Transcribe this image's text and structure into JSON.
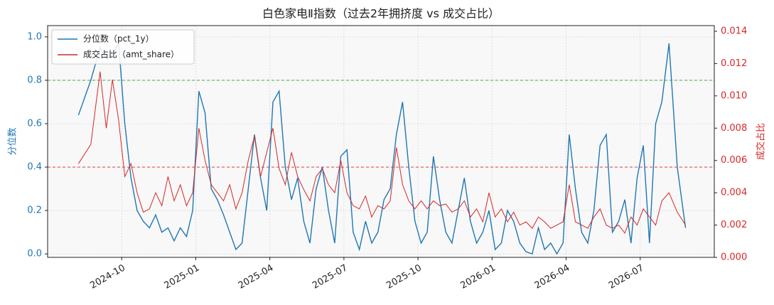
{
  "chart_data": {
    "type": "line",
    "title": "白色家电Ⅱ指数（过去2年拥挤度 vs 成交占比）",
    "ylabel": "分位数",
    "y2label": "成交占比",
    "x": [
      "2024-08",
      "2024-08",
      "2024-09",
      "2024-09",
      "2024-09",
      "2024-09",
      "2024-10",
      "2024-10",
      "2024-10",
      "2024-10",
      "2024-11",
      "2024-11",
      "2024-11",
      "2024-11",
      "2024-12",
      "2024-12",
      "2024-12",
      "2024-12",
      "2025-01",
      "2025-01",
      "2025-01",
      "2025-01",
      "2025-02",
      "2025-02",
      "2025-02",
      "2025-02",
      "2025-03",
      "2025-03",
      "2025-03",
      "2025-03",
      "2025-04",
      "2025-04",
      "2025-04",
      "2025-04",
      "2025-05",
      "2025-05",
      "2025-05",
      "2025-05",
      "2025-06",
      "2025-06",
      "2025-06",
      "2025-06",
      "2025-07",
      "2025-07",
      "2025-07",
      "2025-07",
      "2025-08",
      "2025-08",
      "2025-08",
      "2025-08",
      "2025-09",
      "2025-09",
      "2025-09",
      "2025-09",
      "2025-10",
      "2025-10",
      "2025-10",
      "2025-10",
      "2025-11",
      "2025-11",
      "2025-11",
      "2025-11",
      "2025-12",
      "2025-12",
      "2025-12",
      "2025-12",
      "2026-01",
      "2026-01",
      "2026-01",
      "2026-01",
      "2026-02",
      "2026-02",
      "2026-02",
      "2026-02",
      "2026-03",
      "2026-03",
      "2026-03",
      "2026-03",
      "2026-04",
      "2026-04",
      "2026-04",
      "2026-04",
      "2026-05",
      "2026-05",
      "2026-05",
      "2026-05",
      "2026-06",
      "2026-06",
      "2026-06",
      "2026-06",
      "2026-07",
      "2026-07",
      "2026-07",
      "2026-07",
      "2026-08",
      "2026-08",
      "2026-08"
    ],
    "series": [
      {
        "name": "分位数（pct_1y）",
        "color": "#1f77b4",
        "axis": "y",
        "values": [
          0.64,
          0.8,
          0.95,
          0.9,
          0.92,
          0.97,
          0.6,
          0.35,
          0.2,
          0.15,
          0.12,
          0.18,
          0.1,
          0.12,
          0.06,
          0.12,
          0.08,
          0.2,
          0.75,
          0.65,
          0.3,
          0.25,
          0.18,
          0.1,
          0.02,
          0.05,
          0.3,
          0.55,
          0.35,
          0.2,
          0.7,
          0.75,
          0.4,
          0.25,
          0.35,
          0.15,
          0.05,
          0.3,
          0.4,
          0.2,
          0.05,
          0.45,
          0.48,
          0.1,
          0.02,
          0.15,
          0.05,
          0.1,
          0.25,
          0.3,
          0.55,
          0.7,
          0.4,
          0.15,
          0.05,
          0.1,
          0.45,
          0.25,
          0.1,
          0.05,
          0.2,
          0.35,
          0.15,
          0.05,
          0.1,
          0.2,
          0.02,
          0.05,
          0.2,
          0.15,
          0.05,
          0.01,
          0.0,
          0.12,
          0.02,
          0.05,
          0.0,
          0.05,
          0.55,
          0.3,
          0.1,
          0.05,
          0.2,
          0.5,
          0.55,
          0.1,
          0.15,
          0.25,
          0.05,
          0.35,
          0.5,
          0.05,
          0.6,
          0.7,
          0.97,
          0.4,
          0.12
        ]
      },
      {
        "name": "成交占比（amt_share）",
        "color": "#d62728",
        "axis": "y2",
        "values": [
          0.0058,
          0.007,
          0.0115,
          0.008,
          0.011,
          0.0085,
          0.005,
          0.0058,
          0.004,
          0.0028,
          0.003,
          0.004,
          0.0032,
          0.005,
          0.0035,
          0.0045,
          0.0032,
          0.004,
          0.008,
          0.006,
          0.0045,
          0.004,
          0.0035,
          0.0045,
          0.003,
          0.004,
          0.006,
          0.0075,
          0.005,
          0.0065,
          0.008,
          0.0055,
          0.0045,
          0.0065,
          0.005,
          0.0042,
          0.0035,
          0.005,
          0.0055,
          0.0045,
          0.004,
          0.006,
          0.004,
          0.0032,
          0.003,
          0.0038,
          0.0025,
          0.0032,
          0.003,
          0.0035,
          0.0068,
          0.0045,
          0.0035,
          0.003,
          0.0035,
          0.003,
          0.0035,
          0.0032,
          0.0033,
          0.0028,
          0.003,
          0.0035,
          0.0025,
          0.003,
          0.0022,
          0.004,
          0.0025,
          0.003,
          0.0022,
          0.0028,
          0.002,
          0.0022,
          0.0018,
          0.0025,
          0.0022,
          0.0018,
          0.002,
          0.0022,
          0.0045,
          0.0022,
          0.002,
          0.0018,
          0.0025,
          0.003,
          0.002,
          0.0018,
          0.002,
          0.0015,
          0.0025,
          0.002,
          0.003,
          0.0025,
          0.002,
          0.0035,
          0.004,
          0.0028,
          0.002
        ]
      }
    ],
    "hlines": [
      {
        "value": 0.8,
        "color": "#2ca02c"
      },
      {
        "value": 0.4,
        "color": "#d62728"
      }
    ],
    "xlim": [
      "2024-07",
      "2026-09"
    ],
    "xticks": [
      "2024-10",
      "2025-01",
      "2025-04",
      "2025-07",
      "2025-10",
      "2026-01",
      "2026-04",
      "2026-07"
    ],
    "ylim": [
      -0.016,
      1.052
    ],
    "yticks": [
      {
        "value": 0,
        "label": "0.0"
      },
      0.2,
      0.4,
      0.6,
      0.8,
      {
        "value": 1,
        "label": "1.0"
      }
    ],
    "y2lim": [
      0,
      0.01435
    ],
    "y2ticks": [
      {
        "value": 0,
        "label": "0.000"
      },
      {
        "value": 0.002,
        "label": "0.002"
      },
      {
        "value": 0.004,
        "label": "0.004"
      },
      {
        "value": 0.006,
        "label": "0.006"
      },
      {
        "value": 0.008,
        "label": "0.008"
      },
      {
        "value": 0.01,
        "label": "0.010"
      },
      {
        "value": 0.012,
        "label": "0.012"
      },
      {
        "value": 0.014,
        "label": "0.014"
      }
    ],
    "grid": true,
    "legend": "upper left"
  }
}
